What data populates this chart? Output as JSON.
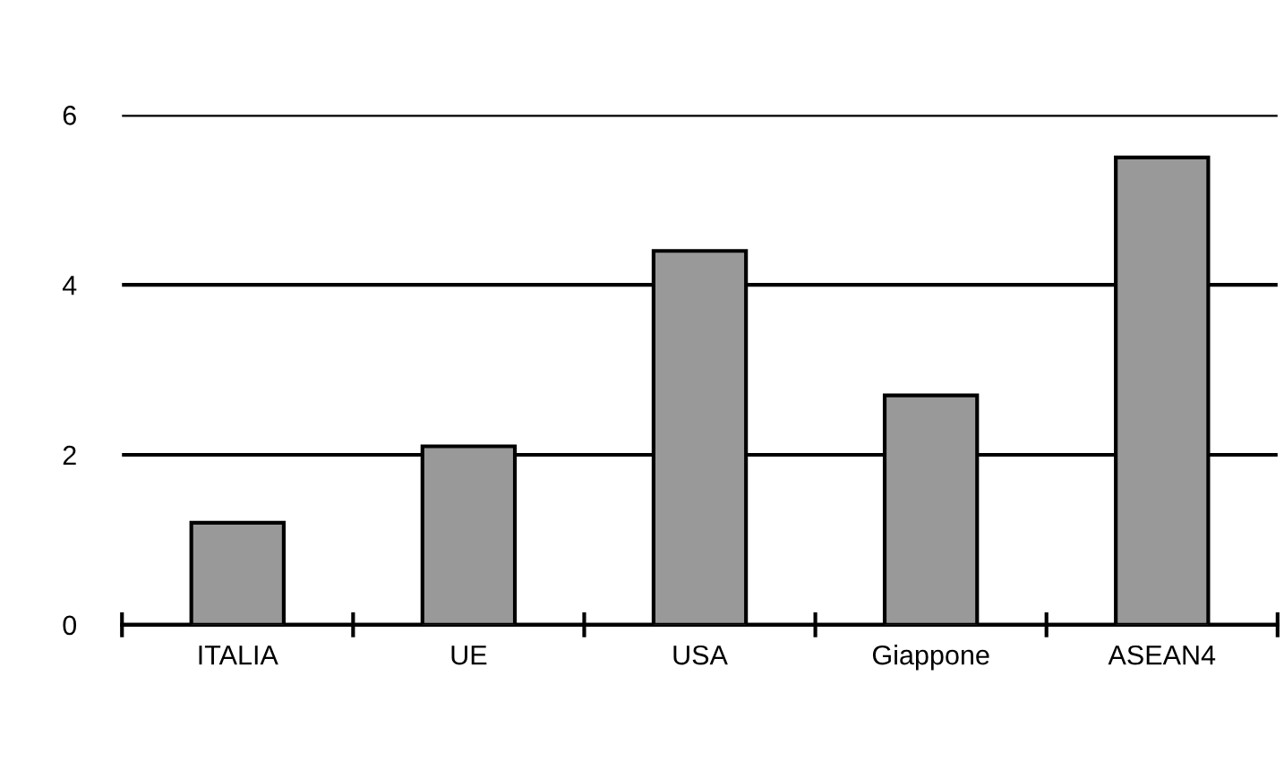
{
  "chart_data": {
    "type": "bar",
    "categories": [
      "ITALIA",
      "UE",
      "USA",
      "Giappone",
      "ASEAN4"
    ],
    "values": [
      1.2,
      2.1,
      4.4,
      2.7,
      5.5
    ],
    "color": "#999999",
    "ylim": [
      0,
      6
    ],
    "yticks": [
      0,
      2,
      4,
      6
    ],
    "grid": "y",
    "legend": false
  }
}
